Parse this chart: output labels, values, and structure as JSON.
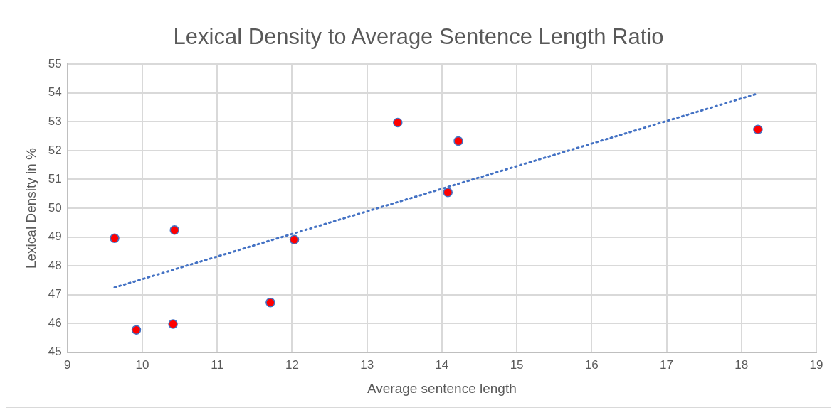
{
  "chart_data": {
    "type": "scatter",
    "title": "Lexical Density to Average Sentence Length Ratio",
    "xlabel": "Average sentence length",
    "ylabel": "Lexical Density in %",
    "x": [
      9.63,
      9.92,
      10.41,
      10.43,
      11.71,
      12.03,
      13.41,
      14.08,
      14.22,
      18.22
    ],
    "series": [
      {
        "type": "scatter",
        "color": "#ff0000",
        "values": [
          48.96,
          45.78,
          45.98,
          49.24,
          46.73,
          48.91,
          52.97,
          50.55,
          52.33,
          52.73
        ],
        "marker": "circle"
      },
      {
        "type": "line",
        "color": "#4472c4",
        "x": [
          9.63,
          18.22
        ],
        "values": [
          47.25,
          53.98
        ],
        "line_style": "dotted",
        "marker": "none"
      }
    ],
    "xlim": [
      9,
      19
    ],
    "xticks": [
      9,
      10,
      11,
      12,
      13,
      14,
      15,
      16,
      17,
      18,
      19
    ],
    "ylim": [
      45,
      55
    ],
    "yticks": [
      45,
      46,
      47,
      48,
      49,
      50,
      51,
      52,
      53,
      54,
      55
    ],
    "grid": true
  }
}
